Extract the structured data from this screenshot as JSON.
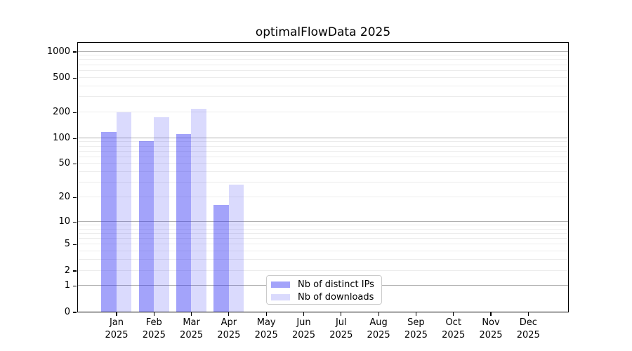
{
  "chart_data": {
    "type": "bar",
    "title": "optimalFlowData 2025",
    "yscale": "log1p",
    "months": [
      "Jan",
      "Feb",
      "Mar",
      "Apr",
      "May",
      "Jun",
      "Jul",
      "Aug",
      "Sep",
      "Oct",
      "Nov",
      "Dec"
    ],
    "year": "2025",
    "series": [
      {
        "name": "Nb of distinct IPs",
        "color": "rgba(50, 50, 245, 0.45)",
        "color_hex_on_white": "#a2a2f8",
        "values": [
          116,
          92,
          111,
          16,
          0,
          0,
          0,
          0,
          0,
          0,
          0,
          0
        ]
      },
      {
        "name": "Nb of downloads",
        "color": "rgba(50, 50, 245, 0.18)",
        "color_hex_on_white": "#dadafd",
        "values": [
          196,
          173,
          215,
          28,
          0,
          0,
          0,
          0,
          0,
          0,
          0,
          0
        ]
      }
    ],
    "yticks": [
      0,
      1,
      2,
      5,
      10,
      20,
      50,
      100,
      200,
      500,
      1000
    ],
    "ylim": [
      0,
      1300
    ],
    "grid": true,
    "grid_major_color": "#b0b0b0",
    "grid_minor_color": "#ececec",
    "legend_position": "lower center"
  }
}
